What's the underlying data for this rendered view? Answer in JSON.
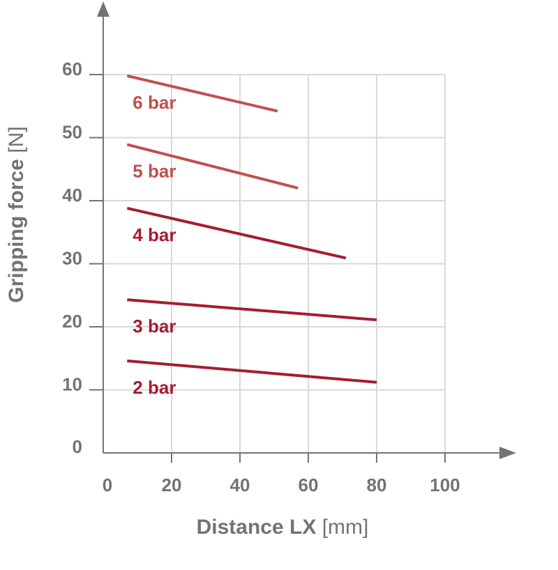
{
  "chart_data": {
    "type": "line",
    "xlabel": {
      "main": "Distance LX",
      "unit": "[mm]"
    },
    "ylabel": {
      "main": "Gripping force",
      "unit": "[N]"
    },
    "xlim": [
      0,
      100
    ],
    "ylim": [
      0,
      60
    ],
    "x_ticks": [
      0,
      20,
      40,
      60,
      80,
      100
    ],
    "y_ticks": [
      0,
      10,
      20,
      30,
      40,
      50,
      60
    ],
    "grid": true,
    "series": [
      {
        "name": "6 bar",
        "color": "#c0504d",
        "points": [
          [
            7,
            59.8
          ],
          [
            51,
            54.2
          ]
        ]
      },
      {
        "name": "5 bar",
        "color": "#c0504d",
        "points": [
          [
            7,
            48.9
          ],
          [
            57,
            42
          ]
        ]
      },
      {
        "name": "4 bar",
        "color": "#a51c30",
        "points": [
          [
            7,
            38.8
          ],
          [
            71,
            30.9
          ]
        ]
      },
      {
        "name": "3 bar",
        "color": "#a51c30",
        "points": [
          [
            7,
            24.3
          ],
          [
            80,
            21.1
          ]
        ]
      },
      {
        "name": "2 bar",
        "color": "#a51c30",
        "points": [
          [
            7,
            14.6
          ],
          [
            80,
            11.2
          ]
        ]
      }
    ]
  }
}
